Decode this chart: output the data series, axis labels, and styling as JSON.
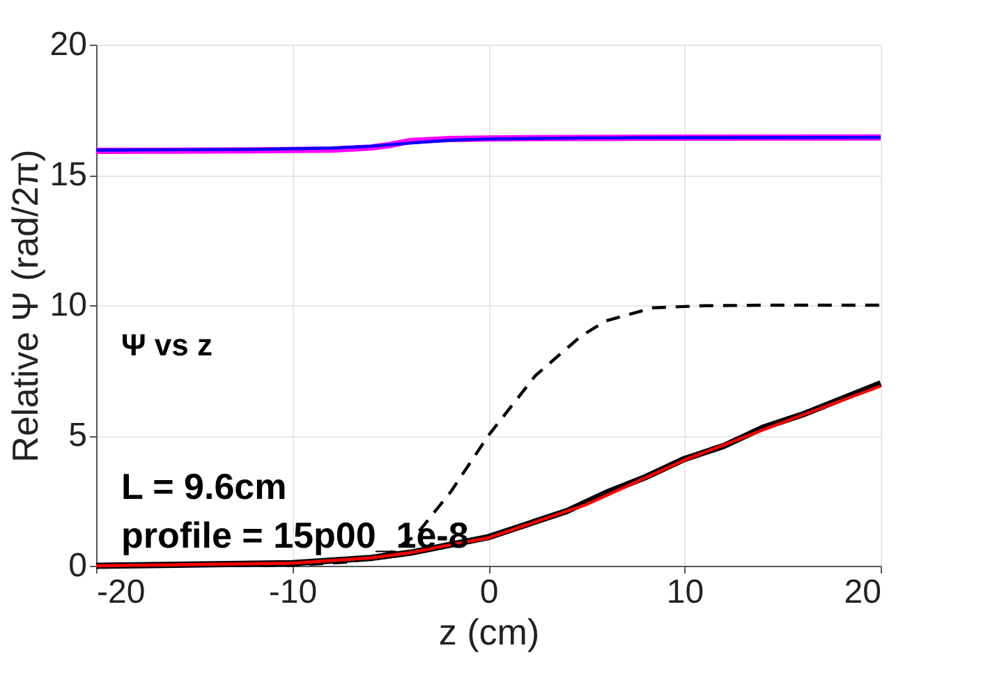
{
  "chart_data": {
    "type": "line",
    "xlabel": "z (cm)",
    "ylabel": "Relative Ψ (rad/2π)",
    "xlim": [
      -20,
      20
    ],
    "xticks": [
      -20,
      -10,
      0,
      10,
      20
    ],
    "ylim": [
      0,
      20
    ],
    "yticks": [
      0,
      5,
      10,
      15,
      20
    ],
    "grid": true,
    "marker": "none",
    "annotations": [
      "Ψ  vs z",
      "L = 9.6cm",
      "profile = 15p00_1e-8"
    ],
    "series": [
      {
        "color": "#ff00ff",
        "line_style": "solid",
        "x": [
          -20,
          -12,
          -8,
          -6,
          -5,
          -4,
          -2,
          0,
          5,
          10,
          20
        ],
        "values": [
          15.92,
          15.94,
          15.97,
          16.05,
          16.15,
          16.3,
          16.38,
          16.4,
          16.42,
          16.43,
          16.44
        ]
      },
      {
        "color": "#0000ff",
        "line_style": "solid",
        "x": [
          -20,
          -12,
          -8,
          -6,
          -4,
          -2,
          0,
          5,
          10,
          20
        ],
        "values": [
          15.95,
          15.98,
          16.03,
          16.1,
          16.22,
          16.33,
          16.38,
          16.42,
          16.43,
          16.44
        ]
      },
      {
        "color": "#000000",
        "line_style": "dashed",
        "x": [
          -20,
          -10,
          -7,
          -5,
          -3.7,
          -1.9,
          0,
          2.4,
          4.7,
          6,
          8.4,
          11,
          14,
          20
        ],
        "values": [
          0,
          0.02,
          0.15,
          0.5,
          1.17,
          2.86,
          5.0,
          7.3,
          8.8,
          9.4,
          9.9,
          9.98,
          10.0,
          10.0
        ]
      },
      {
        "color": "#000000",
        "line_style": "solid",
        "x": [
          -20,
          -10,
          -6,
          -4,
          -2,
          0,
          2,
          4,
          6,
          8,
          10,
          12,
          14,
          16,
          18,
          20
        ],
        "values": [
          0,
          0.1,
          0.3,
          0.5,
          0.8,
          1.1,
          1.6,
          2.1,
          2.8,
          3.4,
          4.1,
          4.6,
          5.3,
          5.8,
          6.4,
          7.0
        ]
      },
      {
        "color": "#ff0000",
        "line_style": "solid",
        "x": [
          -20,
          -10,
          -6,
          -4,
          -2,
          0,
          5,
          10,
          15,
          20
        ],
        "values": [
          0,
          0.1,
          0.3,
          0.5,
          0.8,
          1.07,
          2.35,
          4.06,
          5.5,
          6.9
        ]
      }
    ]
  }
}
